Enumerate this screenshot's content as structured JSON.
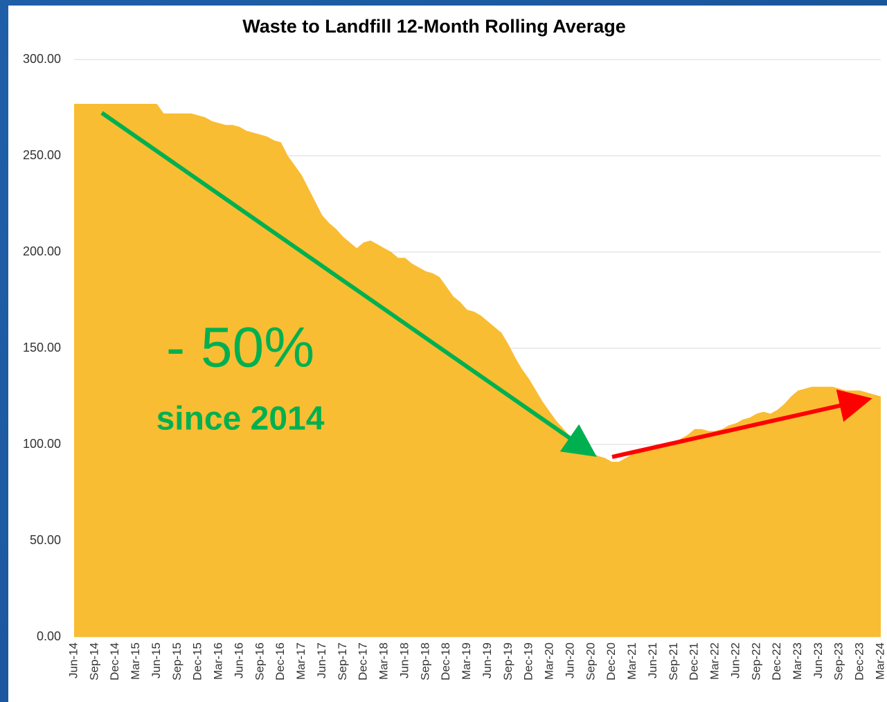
{
  "chart_data": {
    "type": "area",
    "title": "Waste to Landfill 12-Month Rolling Average",
    "annotations": [
      "- 50%",
      "since 2014"
    ],
    "color": "#f9bd33",
    "grid": true,
    "ylim": [
      0,
      300
    ],
    "yticks": [
      {
        "value": 0,
        "label": "0.00"
      },
      {
        "value": 50,
        "label": "50.00"
      },
      {
        "value": 100,
        "label": "100.00"
      },
      {
        "value": 150,
        "label": "150.00"
      },
      {
        "value": 200,
        "label": "200.00"
      },
      {
        "value": 250,
        "label": "250.00"
      },
      {
        "value": 300,
        "label": "300.00"
      }
    ],
    "categories": [
      "Jun-14",
      null,
      null,
      "Sep-14",
      null,
      null,
      "Dec-14",
      null,
      null,
      "Mar-15",
      null,
      null,
      "Jun-15",
      null,
      null,
      "Sep-15",
      null,
      null,
      "Dec-15",
      null,
      null,
      "Mar-16",
      null,
      null,
      "Jun-16",
      null,
      null,
      "Sep-16",
      null,
      null,
      "Dec-16",
      null,
      null,
      "Mar-17",
      null,
      null,
      "Jun-17",
      null,
      null,
      "Sep-17",
      null,
      null,
      "Dec-17",
      null,
      null,
      "Mar-18",
      null,
      null,
      "Jun-18",
      null,
      null,
      "Sep-18",
      null,
      null,
      "Dec-18",
      null,
      null,
      "Mar-19",
      null,
      null,
      "Jun-19",
      null,
      null,
      "Sep-19",
      null,
      null,
      "Dec-19",
      null,
      null,
      "Mar-20",
      null,
      null,
      "Jun-20",
      null,
      null,
      "Sep-20",
      null,
      null,
      "Dec-20",
      null,
      null,
      "Mar-21",
      null,
      null,
      "Jun-21",
      null,
      null,
      "Sep-21",
      null,
      null,
      "Dec-21",
      null,
      null,
      "Mar-22",
      null,
      null,
      "Jun-22",
      null,
      null,
      "Sep-22",
      null,
      null,
      "Dec-22",
      null,
      null,
      "Mar-23",
      null,
      null,
      "Jun-23",
      null,
      null,
      "Sep-23",
      null,
      null,
      "Dec-23",
      null,
      null,
      "Mar-24"
    ],
    "values": [
      277,
      277,
      277,
      277,
      277,
      277,
      277,
      277,
      277,
      277,
      277,
      277,
      277,
      272,
      272,
      272,
      272,
      272,
      271,
      270,
      268,
      267,
      266,
      266,
      265,
      263,
      262,
      261,
      260,
      258,
      257,
      250,
      245,
      240,
      233,
      226,
      219,
      215,
      212,
      208,
      205,
      202,
      205,
      206,
      204,
      202,
      200,
      197,
      197,
      194,
      192,
      190,
      189,
      187,
      182,
      177,
      174,
      170,
      169,
      167,
      164,
      161,
      158,
      152,
      145,
      139,
      134,
      128,
      122,
      117,
      112,
      108,
      104,
      101,
      98,
      96,
      94,
      93,
      91,
      91,
      93,
      95,
      96,
      97,
      98,
      99,
      100,
      101,
      103,
      105,
      108,
      108,
      107,
      107,
      108,
      110,
      111,
      113,
      114,
      116,
      117,
      116,
      118,
      121,
      125,
      128,
      129,
      130,
      130,
      130,
      130,
      129,
      128,
      128,
      128,
      127,
      126,
      125
    ]
  }
}
